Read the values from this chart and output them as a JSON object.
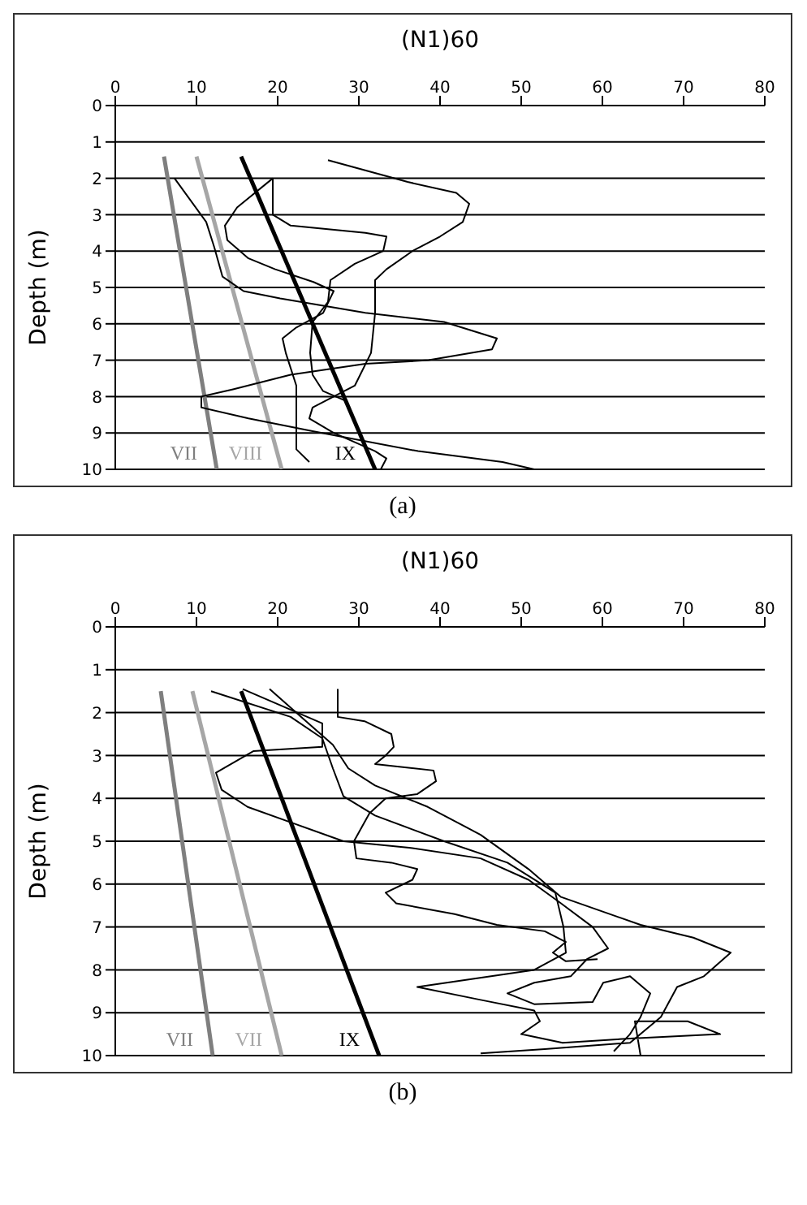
{
  "chart_data": [
    {
      "type": "line",
      "xlabel": "(N1)60",
      "ylabel": "Depth (m)",
      "xlim": [
        0,
        80
      ],
      "xticks": [
        0,
        10,
        20,
        30,
        40,
        50,
        60,
        70,
        80
      ],
      "ylim": [
        10,
        0
      ],
      "yticks": [
        0,
        1,
        2,
        3,
        4,
        5,
        6,
        7,
        8,
        9,
        10
      ],
      "grid": "y",
      "marker": "none",
      "line_style": "solid",
      "series": [
        {
          "name": "VII",
          "color": "#7f7f7f",
          "x": [
            6,
            12.5
          ],
          "values": [
            1.4,
            10
          ]
        },
        {
          "name": "VIII",
          "color": "#a6a6a6",
          "x": [
            10,
            20.5
          ],
          "values": [
            1.4,
            10
          ]
        },
        {
          "name": "IX",
          "color": "#000000",
          "x": [
            15.5,
            32
          ],
          "values": [
            1.4,
            10
          ]
        },
        {
          "color": "#000000",
          "x": [
            26.2,
            36,
            42,
            43.6,
            42.8,
            40,
            36.6,
            33.4,
            32,
            32,
            31.5,
            29.5,
            24.3,
            23.9,
            26.9,
            32,
            33.4,
            32.7
          ],
          "values": [
            1.5,
            2.1,
            2.4,
            2.7,
            3.2,
            3.6,
            4,
            4.5,
            4.8,
            5.7,
            6.8,
            7.7,
            8.3,
            8.6,
            9,
            9.5,
            9.7,
            10
          ]
        },
        {
          "color": "#000000",
          "x": [
            7.3,
            11.2,
            12.2,
            13.2,
            15.8,
            20.3,
            30.8,
            40.5,
            47,
            46.4,
            38.6,
            30.8,
            21.6,
            14.5,
            10.6,
            10.6,
            16.4,
            24.3,
            37.3,
            47.7,
            51.6
          ],
          "values": [
            2,
            3.2,
            3.9,
            4.7,
            5.1,
            5.3,
            5.7,
            5.95,
            6.4,
            6.7,
            7,
            7.1,
            7.4,
            7.8,
            8,
            8.3,
            8.6,
            8.95,
            9.5,
            9.8,
            10
          ]
        },
        {
          "color": "#000000",
          "x": [
            19.4,
            15,
            13.5,
            13.8,
            16.4,
            19.7,
            24.4,
            26.9,
            25.6,
            22.3,
            20.6,
            21,
            22.3,
            22.3,
            23.9
          ],
          "values": [
            2,
            2.8,
            3.3,
            3.7,
            4.2,
            4.5,
            4.85,
            5.1,
            5.7,
            6.1,
            6.4,
            6.8,
            7.7,
            9.45,
            9.8
          ]
        },
        {
          "color": "#000000",
          "x": [
            19.4,
            19.4,
            21.6,
            30.8,
            33.4,
            33,
            29.5,
            26.5,
            26.2,
            24.3,
            24,
            24.3,
            25.6,
            28.2
          ],
          "values": [
            2,
            3,
            3.3,
            3.5,
            3.6,
            4,
            4.35,
            4.8,
            5.4,
            5.95,
            6.8,
            7.4,
            7.85,
            8.1
          ]
        }
      ],
      "annotations": [
        "(a)"
      ]
    },
    {
      "type": "line",
      "xlabel": "(N1)60",
      "ylabel": "Depth (m)",
      "xlim": [
        0,
        80
      ],
      "xticks": [
        0,
        10,
        20,
        30,
        40,
        50,
        60,
        70,
        80
      ],
      "ylim": [
        10,
        0
      ],
      "yticks": [
        0,
        1,
        2,
        3,
        4,
        5,
        6,
        7,
        8,
        9,
        10
      ],
      "grid": "y",
      "marker": "none",
      "line_style": "solid",
      "series": [
        {
          "name": "VII",
          "color": "#7f7f7f",
          "x": [
            5.6,
            12
          ],
          "values": [
            1.5,
            10
          ]
        },
        {
          "name": "VII",
          "color": "#a6a6a6",
          "x": [
            9.5,
            20.5
          ],
          "values": [
            1.5,
            10
          ]
        },
        {
          "name": "IX",
          "color": "#000000",
          "x": [
            15.5,
            32.5
          ],
          "values": [
            1.5,
            10
          ]
        },
        {
          "color": "#000000",
          "x": [
            27.4,
            27.4,
            30.7,
            34,
            34.3,
            33.3,
            32,
            39.2,
            39.5,
            37.2,
            33.3,
            31.3,
            29.4,
            29.7,
            34,
            37.2,
            36.6,
            33.3,
            34.6,
            41.8,
            47,
            52.9,
            55.5,
            53.9,
            55.5,
            59.4
          ],
          "values": [
            1.45,
            2.1,
            2.2,
            2.5,
            2.8,
            3,
            3.2,
            3.35,
            3.6,
            3.9,
            4,
            4.35,
            5,
            5.4,
            5.5,
            5.65,
            5.9,
            6.2,
            6.45,
            6.7,
            6.95,
            7.1,
            7.35,
            7.6,
            7.8,
            7.75
          ]
        },
        {
          "color": "#000000",
          "x": [
            11.8,
            21.6,
            25.5,
            26.8,
            28.1,
            32,
            40.5,
            48.3,
            54.2,
            55.2,
            55.5,
            51.6,
            37.2,
            45,
            51.6,
            52.3,
            50,
            55.1,
            63.4,
            74.5,
            70.5,
            64,
            64.7
          ],
          "values": [
            1.5,
            2.1,
            2.6,
            3.3,
            3.95,
            4.4,
            5,
            5.5,
            6.2,
            7,
            7.6,
            8,
            8.4,
            8.7,
            8.95,
            9.2,
            9.5,
            9.7,
            9.6,
            9.5,
            9.2,
            9.2,
            10
          ]
        },
        {
          "color": "#000000",
          "x": [
            15.7,
            25.5,
            25.5,
            17,
            12.4,
            13.1,
            16.3,
            22.2,
            28.1,
            36.2,
            45,
            50.9,
            54.9,
            58.8,
            60.7,
            58.1,
            56.1,
            51.6,
            48.3,
            51.6,
            58.8,
            60.1,
            63.4,
            65.9,
            64.7,
            63.4,
            61.4
          ],
          "values": [
            1.45,
            2.25,
            2.8,
            2.9,
            3.4,
            3.8,
            4.2,
            4.6,
            5,
            5.15,
            5.4,
            5.9,
            6.45,
            7,
            7.5,
            7.75,
            8.15,
            8.3,
            8.55,
            8.8,
            8.75,
            8.3,
            8.15,
            8.55,
            9.1,
            9.5,
            9.9
          ]
        },
        {
          "color": "#000000",
          "x": [
            19,
            22.9,
            26.8,
            28.7,
            32,
            38.5,
            45,
            50.9,
            54.9,
            64.7,
            71.2,
            75.8,
            72.5,
            69.2,
            67.2,
            63.4,
            52.9,
            45
          ],
          "values": [
            1.45,
            2.1,
            2.75,
            3.3,
            3.7,
            4.2,
            4.85,
            5.65,
            6.3,
            6.95,
            7.25,
            7.6,
            8.15,
            8.4,
            9.1,
            9.7,
            9.85,
            9.95
          ]
        }
      ],
      "annotations": [
        "(b)"
      ]
    }
  ]
}
